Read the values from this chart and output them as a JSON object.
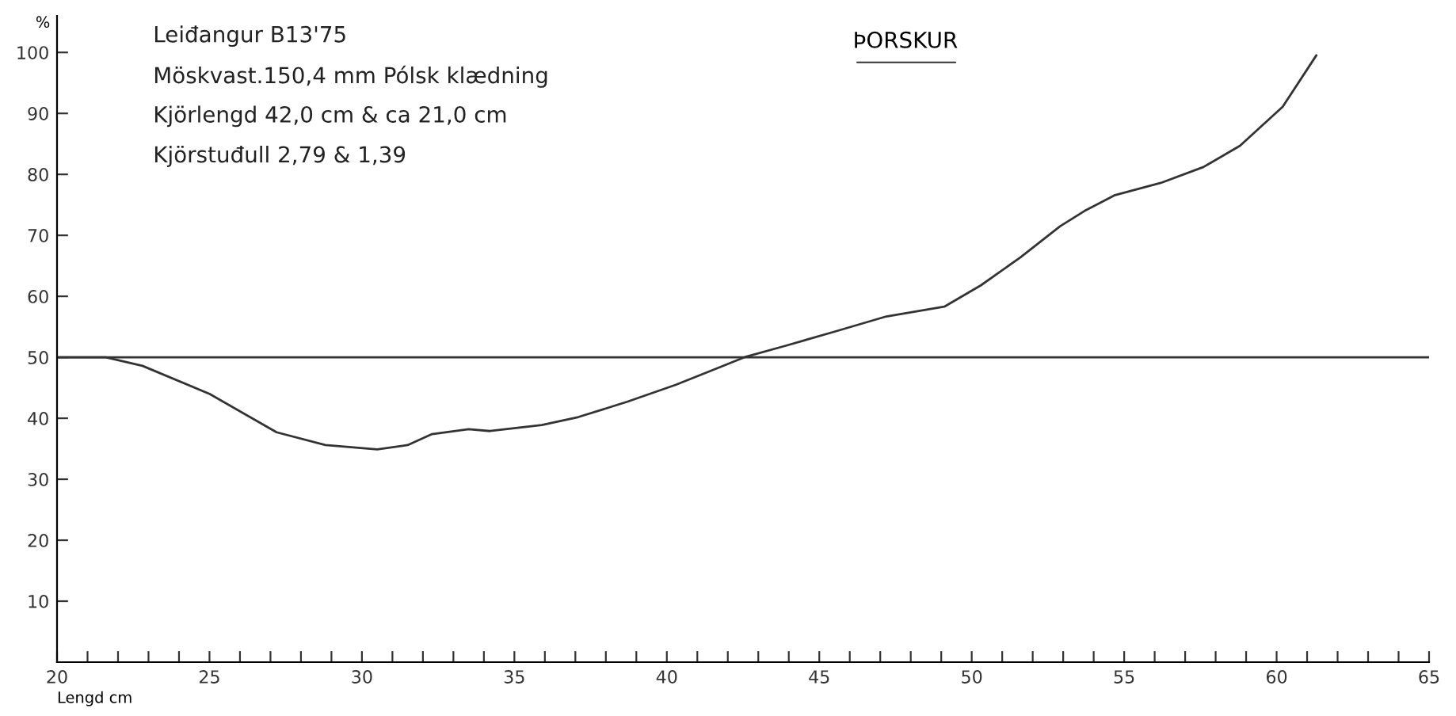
{
  "chart_data": {
    "type": "line",
    "title": "ÞORSKUR",
    "ylabel": "%",
    "xlabel": "Lengd cm",
    "annotations": [
      "Leiđangur B13'75",
      "Möskvast.150,4 mm Pólsk klædning",
      "Kjörlengd 42,0 cm & ca 21,0 cm",
      "Kjörstuđull 2,79 & 1,39"
    ],
    "series": [
      {
        "color": "#333333",
        "x": [
          20,
          21.6,
          22.8,
          25,
          27.2,
          28.8,
          30.5,
          31.5,
          32.3,
          33.5,
          34.2,
          35.9,
          37.1,
          38.7,
          40.3,
          41.6,
          42.6,
          43.9,
          45.5,
          47.2,
          49.1,
          50.3,
          51.6,
          52.9,
          53.7,
          54.7,
          56.2,
          57.6,
          58.8,
          60.2,
          61.3
        ],
        "values": [
          50,
          50,
          48.6,
          44,
          37.7,
          35.6,
          34.9,
          35.6,
          37.4,
          38.2,
          37.9,
          38.9,
          40.2,
          42.7,
          45.5,
          48.1,
          50.1,
          51.9,
          54.2,
          56.7,
          58.3,
          61.8,
          66.4,
          71.5,
          74.0,
          76.6,
          78.6,
          81.2,
          84.7,
          91.1,
          99.5
        ]
      }
    ],
    "ref_lines": [
      {
        "axis": "y",
        "value": 50,
        "color": "#333333"
      }
    ],
    "xlim": [
      20,
      65
    ],
    "ylim": [
      0,
      106
    ],
    "xticks": [
      20,
      {
        "value": 21,
        "label": null
      },
      {
        "value": 22,
        "label": null
      },
      {
        "value": 23,
        "label": null
      },
      {
        "value": 24,
        "label": null
      },
      25,
      {
        "value": 26,
        "label": null
      },
      {
        "value": 27,
        "label": null
      },
      {
        "value": 28,
        "label": null
      },
      {
        "value": 29,
        "label": null
      },
      30,
      {
        "value": 31,
        "label": null
      },
      {
        "value": 32,
        "label": null
      },
      {
        "value": 33,
        "label": null
      },
      {
        "value": 34,
        "label": null
      },
      35,
      {
        "value": 36,
        "label": null
      },
      {
        "value": 37,
        "label": null
      },
      {
        "value": 38,
        "label": null
      },
      {
        "value": 39,
        "label": null
      },
      40,
      {
        "value": 41,
        "label": null
      },
      {
        "value": 42,
        "label": null
      },
      {
        "value": 43,
        "label": null
      },
      {
        "value": 44,
        "label": null
      },
      45,
      {
        "value": 46,
        "label": null
      },
      {
        "value": 47,
        "label": null
      },
      {
        "value": 48,
        "label": null
      },
      {
        "value": 49,
        "label": null
      },
      50,
      {
        "value": 51,
        "label": null
      },
      {
        "value": 52,
        "label": null
      },
      {
        "value": 53,
        "label": null
      },
      {
        "value": 54,
        "label": null
      },
      55,
      {
        "value": 56,
        "label": null
      },
      {
        "value": 57,
        "label": null
      },
      {
        "value": 58,
        "label": null
      },
      {
        "value": 59,
        "label": null
      },
      60,
      {
        "value": 61,
        "label": null
      },
      {
        "value": 62,
        "label": null
      },
      {
        "value": 63,
        "label": null
      },
      {
        "value": 64,
        "label": null
      },
      65
    ],
    "yticks": [
      10,
      20,
      30,
      40,
      50,
      60,
      70,
      80,
      90,
      100
    ],
    "grid": false,
    "legend": false
  }
}
